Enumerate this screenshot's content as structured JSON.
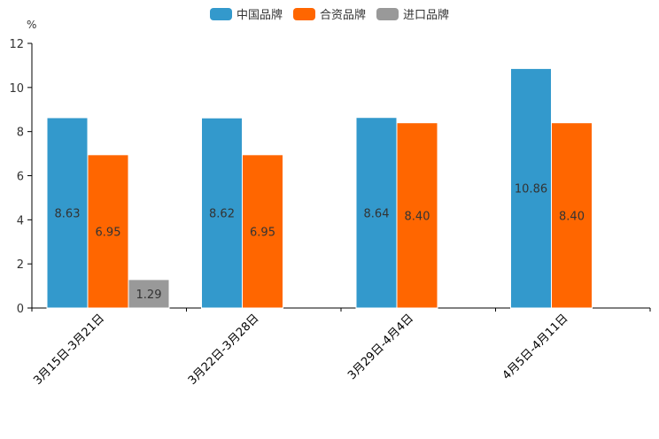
{
  "chart_data": {
    "type": "bar",
    "ylabel": "%",
    "ylim": [
      0,
      12
    ],
    "yticks": [
      0,
      2,
      4,
      6,
      8,
      10,
      12
    ],
    "grid": false,
    "legend_position": "top-center",
    "categories": [
      "3月15日-3月21日",
      "3月22日-3月28日",
      "3月29日-4月4日",
      "4月5日-4月11日"
    ],
    "series": [
      {
        "name": "中国品牌",
        "color": "#3399CC",
        "values": [
          8.63,
          8.62,
          8.64,
          10.86
        ],
        "labels": [
          "8.63",
          "8.62",
          "8.64",
          "10.86"
        ]
      },
      {
        "name": "合资品牌",
        "color": "#FF6600",
        "values": [
          6.95,
          6.95,
          8.4,
          8.4
        ],
        "labels": [
          "6.95",
          "6.95",
          "8.40",
          "8.40"
        ]
      },
      {
        "name": "进口品牌",
        "color": "#999999",
        "values": [
          1.29,
          null,
          null,
          null
        ],
        "labels": [
          "1.29",
          null,
          null,
          null
        ]
      }
    ]
  }
}
